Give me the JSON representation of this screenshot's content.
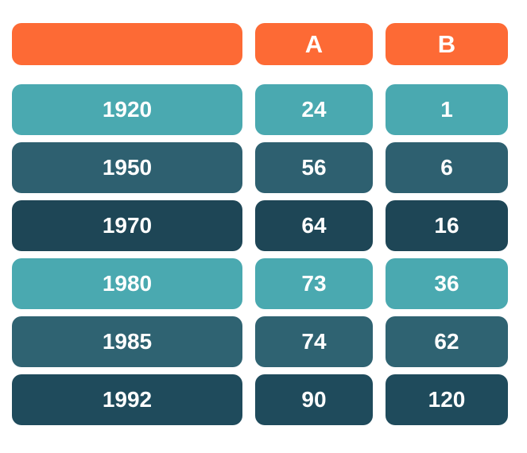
{
  "table": {
    "header": {
      "label": "",
      "col_a": "A",
      "col_b": "B"
    },
    "rows": [
      {
        "label": "1920",
        "a": "24",
        "b": "1",
        "color": "#4AA9B0"
      },
      {
        "label": "1950",
        "a": "56",
        "b": "6",
        "color": "#2E6070"
      },
      {
        "label": "1970",
        "a": "64",
        "b": "16",
        "color": "#1E4656"
      },
      {
        "label": "1980",
        "a": "73",
        "b": "36",
        "color": "#4AA9B0"
      },
      {
        "label": "1985",
        "a": "74",
        "b": "62",
        "color": "#2F6372"
      },
      {
        "label": "1992",
        "a": "90",
        "b": "120",
        "color": "#1F4B5C"
      }
    ],
    "colors": {
      "header_background": "#FD6A35",
      "text": "#FFFFFF",
      "page_background": "#FFFFFF"
    }
  },
  "chart_data": {
    "type": "table",
    "title": "",
    "columns": [
      "",
      "A",
      "B"
    ],
    "rows": [
      [
        "1920",
        24,
        1
      ],
      [
        "1950",
        56,
        6
      ],
      [
        "1970",
        64,
        16
      ],
      [
        "1980",
        73,
        36
      ],
      [
        "1985",
        74,
        62
      ],
      [
        "1992",
        90,
        120
      ]
    ],
    "layout_hints": {
      "row_color_cycle": [
        "#4AA9B0",
        "#2E6070",
        "#1E4656"
      ],
      "header_color": "#FD6A35",
      "grid": "off",
      "legend": "none"
    }
  }
}
